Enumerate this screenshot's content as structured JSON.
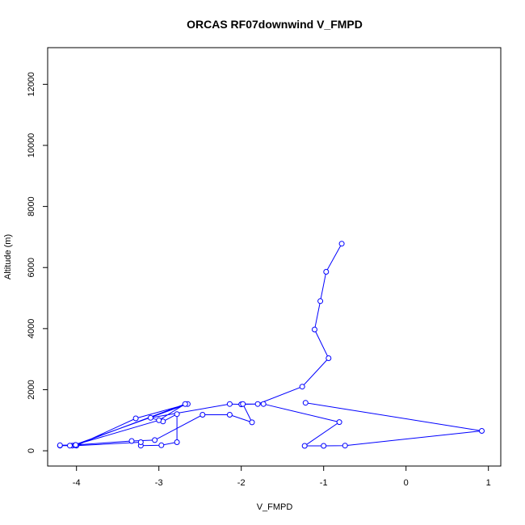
{
  "chart_data": {
    "type": "line",
    "title": "ORCAS RF07downwind V_FMPD",
    "xlabel": "V_FMPD",
    "ylabel": "Altitude (m)",
    "xlim": [
      -4.35,
      1.15
    ],
    "ylim": [
      -500,
      13200
    ],
    "x_ticks": [
      -4,
      -3,
      -2,
      -1,
      0,
      1
    ],
    "y_ticks": [
      0,
      2000,
      4000,
      6000,
      8000,
      10000,
      12000
    ],
    "grid": false,
    "series": [
      {
        "color": "#0000ff",
        "marker": "open-circle",
        "points": [
          [
            -0.78,
            6780
          ],
          [
            -0.97,
            5860
          ],
          [
            -1.04,
            4900
          ],
          [
            -1.11,
            3970
          ],
          [
            -0.94,
            3030
          ],
          [
            -1.26,
            2100
          ],
          [
            -1.8,
            1530
          ],
          [
            -2.0,
            1520
          ],
          [
            -2.14,
            1530
          ],
          [
            -3.1,
            1080
          ],
          [
            -2.95,
            960
          ],
          [
            -2.78,
            1200
          ],
          [
            -2.78,
            280
          ],
          [
            -2.97,
            180
          ],
          [
            -3.22,
            170
          ],
          [
            -3.22,
            280
          ],
          [
            -4.0,
            170
          ],
          [
            -3.28,
            1060
          ],
          [
            -2.65,
            1530
          ],
          [
            -4.05,
            170
          ],
          [
            -3.0,
            1000
          ],
          [
            -2.68,
            1530
          ],
          [
            -4.02,
            180
          ],
          [
            -4.08,
            170
          ],
          [
            -4.2,
            170
          ],
          [
            -4.2,
            180
          ],
          [
            -4.01,
            190
          ],
          [
            -3.33,
            320
          ],
          [
            -3.05,
            350
          ],
          [
            -2.47,
            1180
          ],
          [
            -2.14,
            1180
          ],
          [
            -1.87,
            930
          ],
          [
            -1.98,
            1530
          ],
          [
            -1.73,
            1530
          ],
          [
            -0.81,
            940
          ],
          [
            -1.23,
            160
          ],
          [
            -1.0,
            160
          ],
          [
            -0.74,
            170
          ],
          [
            0.92,
            650
          ],
          [
            -1.22,
            1570
          ]
        ]
      }
    ]
  }
}
